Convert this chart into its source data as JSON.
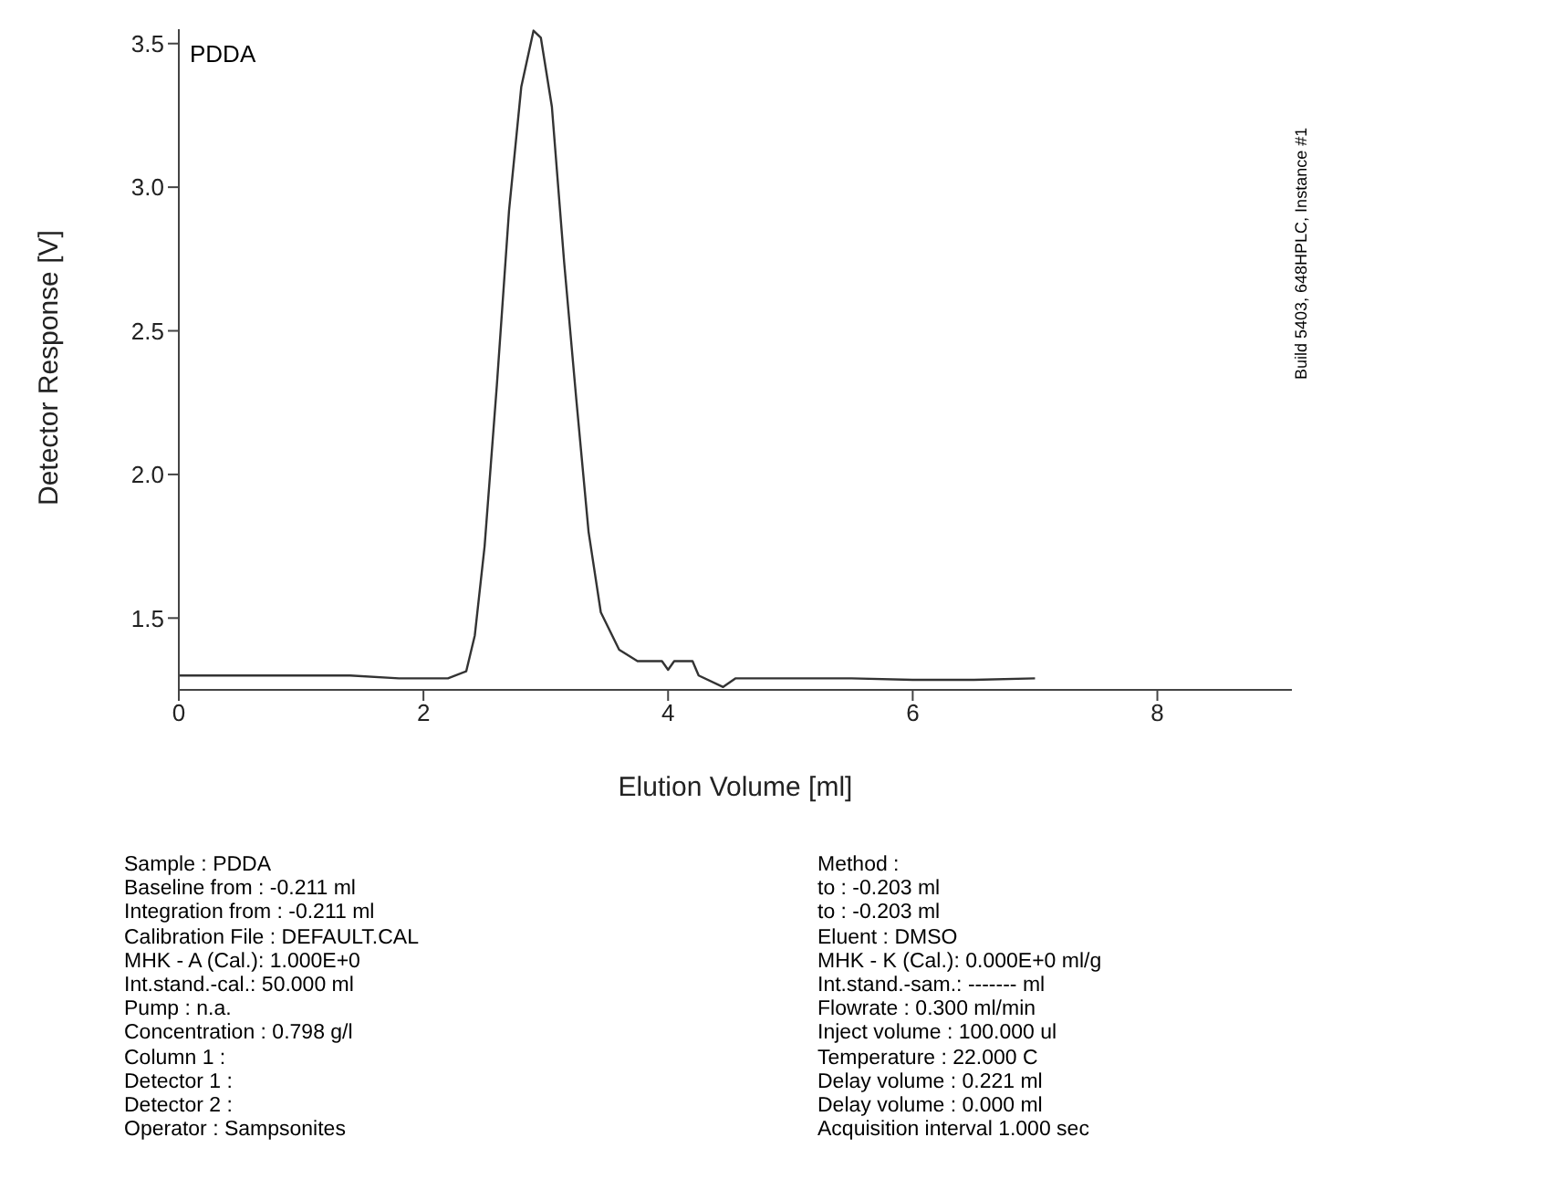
{
  "chart_data": {
    "type": "line",
    "xlabel": "Elution Volume [ml]",
    "ylabel": "Detector Response [V]",
    "xlim": [
      0,
      9.1
    ],
    "xticks": [
      0,
      2,
      4,
      6,
      8
    ],
    "ylim": [
      1.25,
      3.55
    ],
    "yticks": [
      1.5,
      {
        "value": 2,
        "label": "2.0"
      },
      2.5,
      {
        "value": 3,
        "label": "3.0"
      },
      3.5
    ],
    "grid": false,
    "legend": false,
    "marker": "none",
    "line_style": "solid",
    "series": [
      {
        "color": "#333333",
        "x": [
          0,
          0.5,
          1.0,
          1.4,
          1.8,
          2.2,
          2.35,
          2.42,
          2.5,
          2.6,
          2.7,
          2.8,
          2.9,
          2.96,
          3.05,
          3.15,
          3.25,
          3.35,
          3.45,
          3.6,
          3.75,
          3.95,
          4.0,
          4.05,
          4.2,
          4.25,
          4.45,
          4.55,
          5.0,
          5.5,
          6.0,
          6.5,
          7.0
        ],
        "values": [
          1.3,
          1.3,
          1.3,
          1.3,
          1.29,
          1.29,
          1.315,
          1.44,
          1.75,
          2.31,
          2.92,
          3.35,
          3.545,
          3.52,
          3.28,
          2.74,
          2.26,
          1.8,
          1.52,
          1.39,
          1.35,
          1.35,
          1.32,
          1.35,
          1.35,
          1.3,
          1.26,
          1.29,
          1.29,
          1.29,
          1.285,
          1.285,
          1.29
        ]
      }
    ],
    "annotations": [
      "PDDA",
      "Build 5403, 648HPLC, Instance #1",
      "Sample : PDDA",
      "Baseline from : -0.211 ml",
      "Integration from : -0.211 ml",
      "Calibration File : DEFAULT.CAL",
      "MHK - A (Cal.): 1.000E+0",
      "Int.stand.-cal.: 50.000 ml",
      "Pump : n.a.",
      "Concentration : 0.798 g/l",
      "Column 1 :",
      "Detector 1 :",
      "Detector 2 :",
      "Operator : Sampsonites",
      "Method :",
      "to : -0.203 ml",
      "to : -0.203 ml",
      "Eluent : DMSO",
      "MHK - K (Cal.): 0.000E+0 ml/g",
      "Int.stand.-sam.: ------- ml",
      "Flowrate : 0.300 ml/min",
      "Inject volume : 100.000 ul",
      "Temperature : 22.000 C",
      "Delay volume : 0.221 ml",
      "Delay volume : 0.000 ml",
      "Acquisition interval 1.000 sec"
    ]
  }
}
